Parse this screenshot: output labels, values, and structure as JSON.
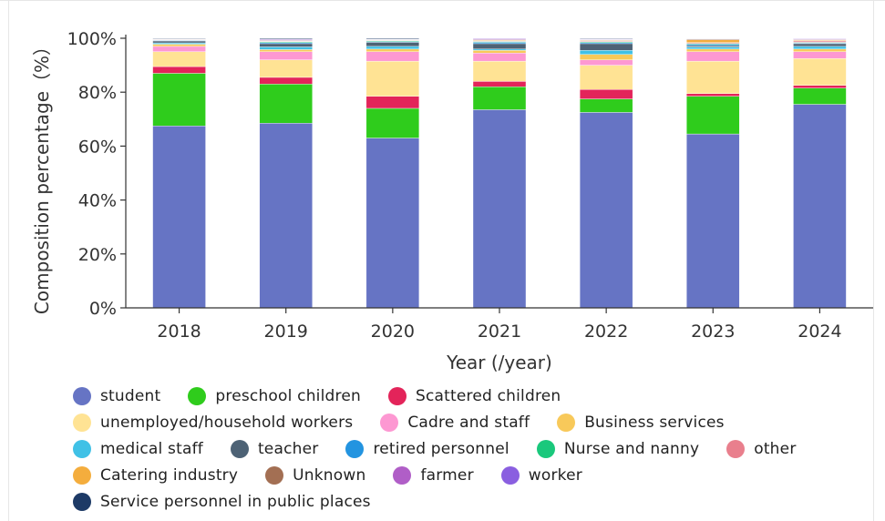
{
  "chart_data": {
    "type": "bar",
    "stacked": true,
    "categories": [
      "2018",
      "2019",
      "2020",
      "2021",
      "2022",
      "2023",
      "2024"
    ],
    "ylabel": "Composition percentage（%）",
    "xlabel": "Year (/year)",
    "ylim": [
      0,
      100
    ],
    "yticks": [
      "0%",
      "20%",
      "40%",
      "60%",
      "80%",
      "100%"
    ],
    "grid": false,
    "legend_position": "bottom",
    "series": [
      {
        "name": "student",
        "color": "#6674c4",
        "values": [
          67.5,
          68.5,
          63.0,
          73.5,
          72.5,
          64.5,
          75.5
        ]
      },
      {
        "name": "preschool children",
        "color": "#2fcc1c",
        "values": [
          19.5,
          14.5,
          11.0,
          8.5,
          5.0,
          14.0,
          6.0
        ]
      },
      {
        "name": "Scattered children",
        "color": "#e3245a",
        "values": [
          2.5,
          2.5,
          4.5,
          2.0,
          3.5,
          1.0,
          1.0
        ]
      },
      {
        "name": "unemployed/household workers",
        "color": "#ffe394",
        "values": [
          5.5,
          6.5,
          13.0,
          7.5,
          9.0,
          12.0,
          10.0
        ]
      },
      {
        "name": "Cadre and staff",
        "color": "#fd98d2",
        "values": [
          2.0,
          3.0,
          3.5,
          3.0,
          2.0,
          3.5,
          2.5
        ]
      },
      {
        "name": "Business services",
        "color": "#f8c95a",
        "values": [
          0.8,
          0.8,
          1.0,
          1.0,
          2.0,
          1.0,
          1.0
        ]
      },
      {
        "name": "medical staff",
        "color": "#40c1e6",
        "values": [
          0.5,
          1.0,
          1.0,
          0.5,
          1.5,
          0.8,
          1.0
        ]
      },
      {
        "name": "teacher",
        "color": "#4d6275",
        "values": [
          0.7,
          1.2,
          1.5,
          2.0,
          2.5,
          0.5,
          1.0
        ]
      },
      {
        "name": "retired personnel",
        "color": "#2394e0",
        "values": [
          0.2,
          0.4,
          0.3,
          0.5,
          0.4,
          0.5,
          0.3
        ]
      },
      {
        "name": "Nurse and nanny",
        "color": "#1ac87c",
        "values": [
          0.1,
          0.3,
          0.3,
          0.3,
          0.3,
          0.3,
          0.2
        ]
      },
      {
        "name": "other",
        "color": "#e97f8d",
        "values": [
          0.1,
          0.2,
          0.2,
          0.2,
          0.3,
          0.3,
          0.5
        ]
      },
      {
        "name": "Catering industry",
        "color": "#f4ad3d",
        "values": [
          0.1,
          0.1,
          0.1,
          0.3,
          0.2,
          1.0,
          0.3
        ]
      },
      {
        "name": "Unknown",
        "color": "#a36f53",
        "values": [
          0.1,
          0.2,
          0.1,
          0.2,
          0.2,
          0.3,
          0.2
        ]
      },
      {
        "name": "farmer",
        "color": "#b05ec7",
        "values": [
          0.1,
          0.3,
          0.1,
          0.3,
          0.2,
          0.1,
          0.2
        ]
      },
      {
        "name": "worker",
        "color": "#8a5fe0",
        "values": [
          0.1,
          0.2,
          0.1,
          0.2,
          0.2,
          0.1,
          0.2
        ]
      },
      {
        "name": "Service personnel in public places",
        "color": "#1d3a66",
        "values": [
          0.2,
          0.3,
          0.3,
          0.0,
          0.2,
          0.1,
          0.1
        ]
      }
    ]
  }
}
